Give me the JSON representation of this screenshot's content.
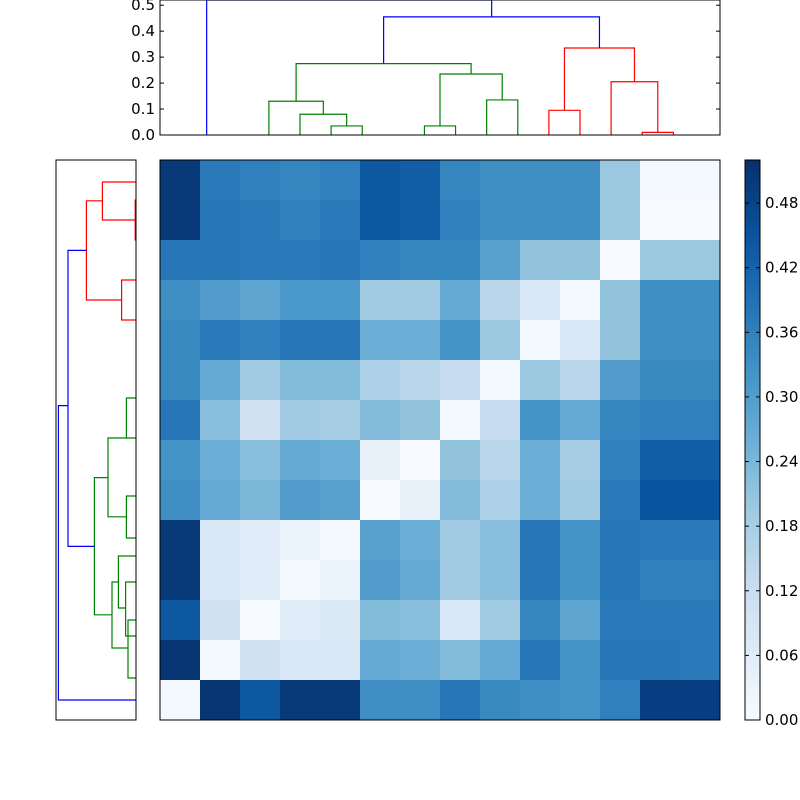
{
  "chart_data": {
    "type": "heatmap",
    "title": "",
    "colormap": "Blues",
    "colors": {
      "cluster_blue": "#0000ff",
      "cluster_green": "#008000",
      "cluster_red": "#ff0000"
    },
    "colorbar": {
      "range": [
        0,
        0.52
      ],
      "ticks": [
        "0.00",
        "0.06",
        "0.12",
        "0.18",
        "0.24",
        "0.30",
        "0.36",
        "0.42",
        "0.48"
      ]
    },
    "matrix": [
      [
        0.5,
        0.37,
        0.36,
        0.35,
        0.36,
        0.44,
        0.43,
        0.35,
        0.33,
        0.33,
        0.33,
        0.2,
        0.01,
        0.01
      ],
      [
        0.5,
        0.38,
        0.37,
        0.36,
        0.37,
        0.44,
        0.43,
        0.36,
        0.33,
        0.33,
        0.33,
        0.2,
        0.0,
        0.0
      ],
      [
        0.38,
        0.38,
        0.37,
        0.37,
        0.38,
        0.36,
        0.35,
        0.35,
        0.29,
        0.21,
        0.21,
        0.0,
        0.2,
        0.2
      ],
      [
        0.33,
        0.3,
        0.28,
        0.31,
        0.31,
        0.19,
        0.19,
        0.27,
        0.15,
        0.08,
        0.01,
        0.21,
        0.33,
        0.33
      ],
      [
        0.34,
        0.37,
        0.36,
        0.38,
        0.38,
        0.26,
        0.26,
        0.32,
        0.2,
        0.01,
        0.08,
        0.21,
        0.33,
        0.33
      ],
      [
        0.34,
        0.27,
        0.19,
        0.23,
        0.23,
        0.17,
        0.15,
        0.13,
        0.01,
        0.2,
        0.15,
        0.3,
        0.34,
        0.34
      ],
      [
        0.38,
        0.22,
        0.1,
        0.19,
        0.18,
        0.23,
        0.21,
        0.01,
        0.13,
        0.32,
        0.27,
        0.35,
        0.36,
        0.36
      ],
      [
        0.32,
        0.26,
        0.22,
        0.27,
        0.26,
        0.04,
        0.0,
        0.21,
        0.15,
        0.26,
        0.18,
        0.36,
        0.43,
        0.43
      ],
      [
        0.33,
        0.27,
        0.24,
        0.3,
        0.29,
        0.0,
        0.04,
        0.23,
        0.17,
        0.26,
        0.19,
        0.37,
        0.45,
        0.45
      ],
      [
        0.5,
        0.08,
        0.06,
        0.03,
        0.01,
        0.29,
        0.26,
        0.19,
        0.22,
        0.38,
        0.32,
        0.38,
        0.37,
        0.37
      ],
      [
        0.5,
        0.08,
        0.06,
        0.01,
        0.03,
        0.3,
        0.27,
        0.19,
        0.22,
        0.38,
        0.32,
        0.38,
        0.36,
        0.36
      ],
      [
        0.44,
        0.1,
        0.0,
        0.06,
        0.07,
        0.23,
        0.22,
        0.08,
        0.19,
        0.35,
        0.28,
        0.37,
        0.37,
        0.37
      ],
      [
        0.51,
        0.01,
        0.1,
        0.08,
        0.08,
        0.27,
        0.26,
        0.23,
        0.27,
        0.38,
        0.32,
        0.38,
        0.38,
        0.37
      ],
      [
        0.01,
        0.51,
        0.44,
        0.5,
        0.5,
        0.33,
        0.33,
        0.38,
        0.34,
        0.33,
        0.32,
        0.36,
        0.49,
        0.49
      ]
    ],
    "top_dendrogram": {
      "yaxis": {
        "range": [
          0,
          0.52
        ],
        "ticks": [
          "0.0",
          "0.1",
          "0.2",
          "0.3",
          "0.4",
          "0.5"
        ]
      },
      "links": [
        {
          "left": 6.0,
          "right": 7.0,
          "left_h": 0.0,
          "right_h": 0.0,
          "height": 0.035,
          "color": "cluster_green"
        },
        {
          "left": 5.0,
          "right": 6.5,
          "left_h": 0.0,
          "right_h": 0.035,
          "height": 0.08,
          "color": "cluster_green"
        },
        {
          "left": 4.0,
          "right": 5.75,
          "left_h": 0.0,
          "right_h": 0.08,
          "height": 0.13,
          "color": "cluster_green"
        },
        {
          "left": 9.0,
          "right": 10.0,
          "left_h": 0.0,
          "right_h": 0.0,
          "height": 0.035,
          "color": "cluster_green"
        },
        {
          "left": 11.0,
          "right": 12.0,
          "left_h": 0.0,
          "right_h": 0.0,
          "height": 0.135,
          "color": "cluster_green"
        },
        {
          "left": 9.5,
          "right": 11.5,
          "left_h": 0.035,
          "right_h": 0.135,
          "height": 0.235,
          "color": "cluster_green"
        },
        {
          "left": 4.875,
          "right": 10.5,
          "left_h": 0.13,
          "right_h": 0.235,
          "height": 0.275,
          "color": "cluster_green"
        },
        {
          "left": 16.0,
          "right": 17.0,
          "left_h": 0.0,
          "right_h": 0.0,
          "height": 0.01,
          "color": "cluster_red"
        },
        {
          "left": 15.0,
          "right": 16.5,
          "left_h": 0.0,
          "right_h": 0.01,
          "height": 0.205,
          "color": "cluster_red"
        },
        {
          "left": 13.0,
          "right": 14.0,
          "left_h": 0.0,
          "right_h": 0.0,
          "height": 0.095,
          "color": "cluster_red"
        },
        {
          "left": 13.5,
          "right": 15.75,
          "left_h": 0.095,
          "right_h": 0.205,
          "height": 0.335,
          "color": "cluster_red"
        },
        {
          "left": 7.6875,
          "right": 14.625,
          "left_h": 0.275,
          "right_h": 0.335,
          "height": 0.455,
          "color": "cluster_blue"
        },
        {
          "left": 2.0,
          "right": 11.16,
          "left_h": 0.0,
          "right_h": 0.455,
          "height": 0.52,
          "color": "cluster_blue"
        }
      ]
    },
    "left_dendrogram": {
      "links": [
        {
          "a": 3.0,
          "b": 4.0,
          "a_d": 0.0,
          "b_d": 0.0,
          "d": 0.18,
          "color": "cluster_red"
        },
        {
          "a": 1.0,
          "b": 2.0,
          "a_d": 0.0,
          "b_d": 0.0,
          "d": 0.01,
          "color": "cluster_red"
        },
        {
          "a": 0.55,
          "b": 1.5,
          "a_d": 0.0,
          "b_d": 0.01,
          "d": 0.42,
          "color": "cluster_red"
        },
        {
          "a": 1.02,
          "b": 3.5,
          "a_d": 0.42,
          "b_d": 0.18,
          "d": 0.62,
          "color": "cluster_red"
        },
        {
          "a": 10.55,
          "b": 11.9,
          "a_d": 0.0,
          "b_d": 0.0,
          "d": 0.13,
          "color": "cluster_green"
        },
        {
          "a": 9.9,
          "b": 11.2,
          "a_d": 0.0,
          "b_d": 0.13,
          "d": 0.22,
          "color": "cluster_green"
        },
        {
          "a": 11.5,
          "b": 12.95,
          "a_d": 0.0,
          "b_d": 0.0,
          "d": 0.1,
          "color": "cluster_green"
        },
        {
          "a": 10.55,
          "b": 12.2,
          "a_d": 0.22,
          "b_d": 0.1,
          "d": 0.3,
          "color": "cluster_green"
        },
        {
          "a": 8.4,
          "b": 9.45,
          "a_d": 0.0,
          "b_d": 0.0,
          "d": 0.12,
          "color": "cluster_green"
        },
        {
          "a": 5.95,
          "b": 6.95,
          "a_d": 0.0,
          "b_d": 0.0,
          "d": 0.12,
          "color": "cluster_green"
        },
        {
          "a": 6.95,
          "b": 8.92,
          "a_d": 0.12,
          "b_d": 0.12,
          "d": 0.35,
          "color": "cluster_green"
        },
        {
          "a": 7.94,
          "b": 11.37,
          "a_d": 0.35,
          "b_d": 0.3,
          "d": 0.52,
          "color": "cluster_green"
        },
        {
          "a": 2.26,
          "b": 9.66,
          "a_d": 0.62,
          "b_d": 0.52,
          "d": 0.85,
          "color": "cluster_blue"
        },
        {
          "a": 6.14,
          "b": 13.5,
          "a_d": 0.85,
          "b_d": 0.0,
          "d": 0.97,
          "color": "cluster_blue"
        }
      ]
    }
  }
}
